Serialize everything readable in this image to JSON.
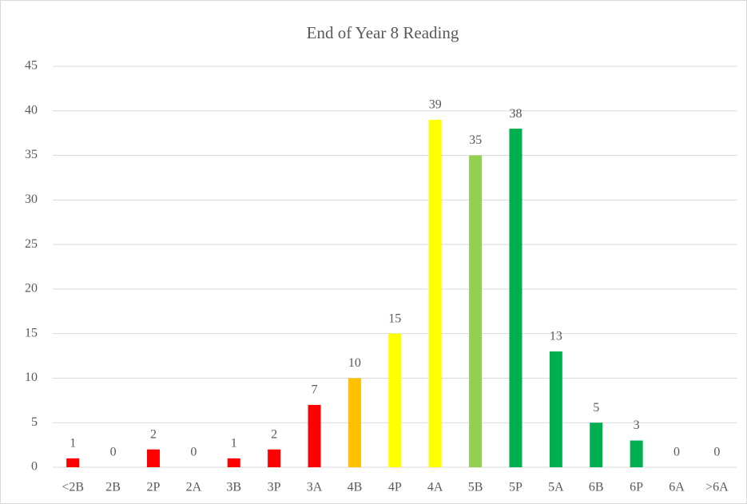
{
  "chart_data": {
    "type": "bar",
    "title": "End of Year 8 Reading",
    "categories": [
      "<2B",
      "2B",
      "2P",
      "2A",
      "3B",
      "3P",
      "3A",
      "4B",
      "4P",
      "4A",
      "5B",
      "5P",
      "5A",
      "6B",
      "6P",
      "6A",
      ">6A"
    ],
    "values": [
      1,
      0,
      2,
      0,
      1,
      2,
      7,
      10,
      15,
      39,
      35,
      38,
      13,
      5,
      3,
      0,
      0
    ],
    "colors": [
      "#ff0000",
      "#ff0000",
      "#ff0000",
      "#ff0000",
      "#ff0000",
      "#ff0000",
      "#ff0000",
      "#ffc000",
      "#ffff00",
      "#ffff00",
      "#92d050",
      "#00b050",
      "#00b050",
      "#00b050",
      "#00b050",
      "#00b050",
      "#00b050"
    ],
    "ylim": [
      0,
      45
    ],
    "yticks": [
      0,
      5,
      10,
      15,
      20,
      25,
      30,
      35,
      40,
      45
    ],
    "grid": true,
    "data_labels": true
  }
}
